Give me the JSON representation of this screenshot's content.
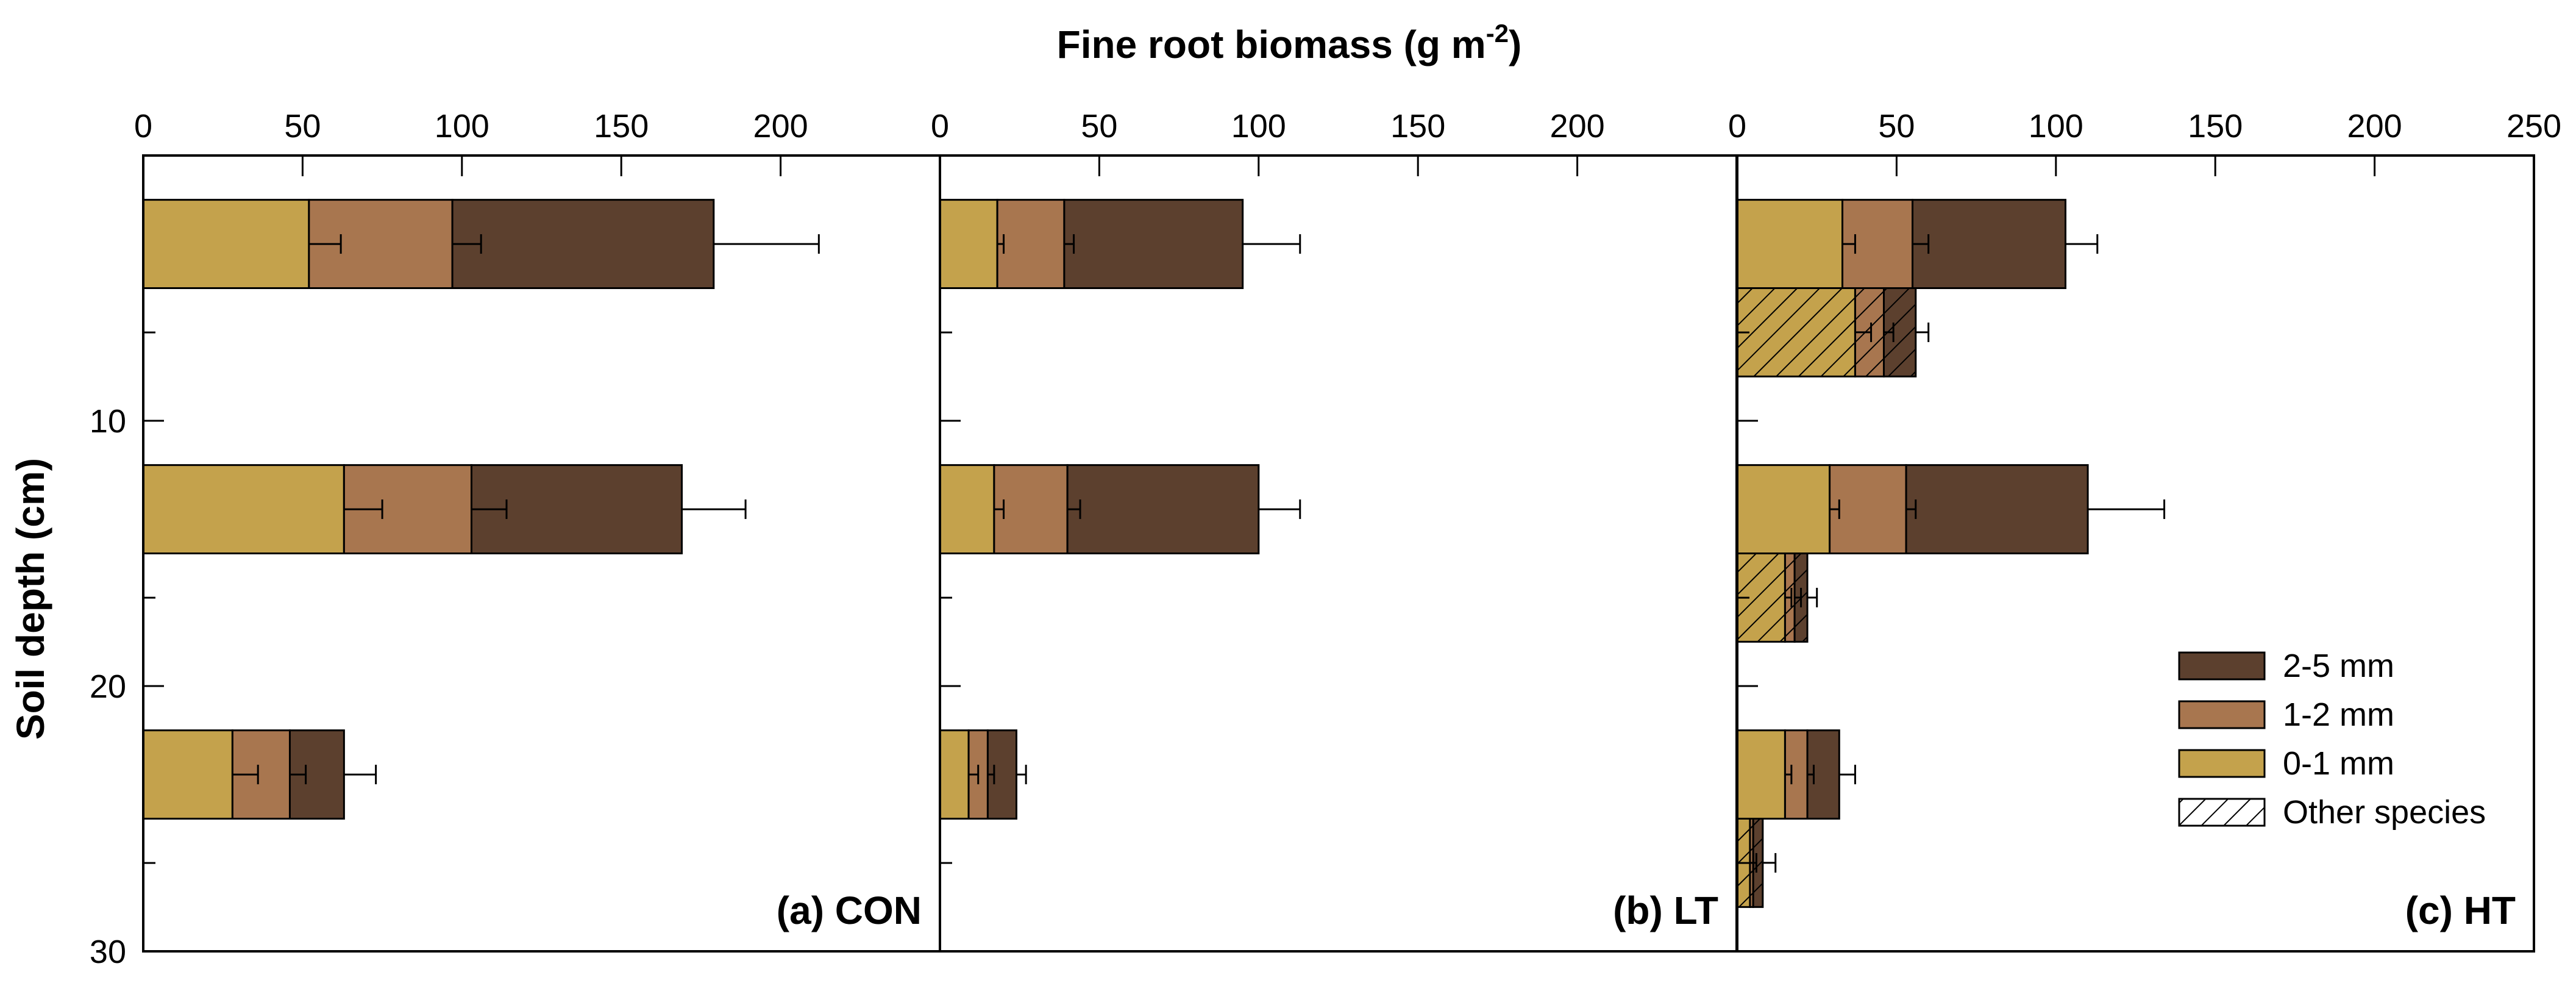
{
  "chart_data": {
    "type": "bar",
    "orientation": "horizontal",
    "stacked": true,
    "title": "",
    "xlabel": "Fine root biomass (g m",
    "xlabel_superscript": "-2",
    "xlabel_suffix": ")",
    "ylabel": "Soil depth (cm)",
    "ylim": [
      0,
      30
    ],
    "y_ticks": [
      {
        "value": 10,
        "label": "10"
      },
      {
        "value": 20,
        "label": "20"
      },
      {
        "value": 30,
        "label": "30"
      }
    ],
    "y_minor_ticks": [
      0,
      6.67,
      16.67,
      26.67
    ],
    "colors": {
      "0-1 mm": "#c4a24c",
      "1-2 mm": "#a8764f",
      "2-5 mm": "#5c402e"
    },
    "legend": {
      "position": "bottom-right of panel (c)",
      "entries": [
        {
          "label": "2-5 mm",
          "color": "#5c402e",
          "hatched": false
        },
        {
          "label": "1-2 mm",
          "color": "#a8764f",
          "hatched": false
        },
        {
          "label": "0-1 mm",
          "color": "#c4a24c",
          "hatched": false
        },
        {
          "label": "Other species",
          "color": "#ffffff",
          "hatched": true
        }
      ]
    },
    "panels": [
      {
        "label": "(a) CON",
        "xlim": [
          0,
          250
        ],
        "x_ticks": [
          {
            "value": 0,
            "label": "0"
          },
          {
            "value": 50,
            "label": "50"
          },
          {
            "value": 100,
            "label": "100"
          },
          {
            "value": 150,
            "label": "150"
          },
          {
            "value": 200,
            "label": "200"
          }
        ],
        "bars": [
          {
            "depth": [
              1.67,
              5.0
            ],
            "hatched": false,
            "segments": [
              {
                "size": "0-1 mm",
                "value": 52,
                "error": 10
              },
              {
                "size": "1-2 mm",
                "value": 45,
                "error": 9
              },
              {
                "size": "2-5 mm",
                "value": 82,
                "error": 33
              }
            ]
          },
          {
            "depth": [
              11.67,
              15.0
            ],
            "hatched": false,
            "segments": [
              {
                "size": "0-1 mm",
                "value": 63,
                "error": 12
              },
              {
                "size": "1-2 mm",
                "value": 40,
                "error": 11
              },
              {
                "size": "2-5 mm",
                "value": 66,
                "error": 20
              }
            ]
          },
          {
            "depth": [
              21.67,
              25.0
            ],
            "hatched": false,
            "segments": [
              {
                "size": "0-1 mm",
                "value": 28,
                "error": 8
              },
              {
                "size": "1-2 mm",
                "value": 18,
                "error": 5
              },
              {
                "size": "2-5 mm",
                "value": 17,
                "error": 10
              }
            ]
          }
        ]
      },
      {
        "label": "(b) LT",
        "xlim": [
          0,
          250
        ],
        "x_ticks": [
          {
            "value": 0,
            "label": "0"
          },
          {
            "value": 50,
            "label": "50"
          },
          {
            "value": 100,
            "label": "100"
          },
          {
            "value": 150,
            "label": "150"
          },
          {
            "value": 200,
            "label": "200"
          }
        ],
        "bars": [
          {
            "depth": [
              1.67,
              5.0
            ],
            "hatched": false,
            "segments": [
              {
                "size": "0-1 mm",
                "value": 18,
                "error": 2
              },
              {
                "size": "1-2 mm",
                "value": 21,
                "error": 3
              },
              {
                "size": "2-5 mm",
                "value": 56,
                "error": 18
              }
            ]
          },
          {
            "depth": [
              11.67,
              15.0
            ],
            "hatched": false,
            "segments": [
              {
                "size": "0-1 mm",
                "value": 17,
                "error": 3
              },
              {
                "size": "1-2 mm",
                "value": 23,
                "error": 4
              },
              {
                "size": "2-5 mm",
                "value": 60,
                "error": 13
              }
            ]
          },
          {
            "depth": [
              21.67,
              25.0
            ],
            "hatched": false,
            "segments": [
              {
                "size": "0-1 mm",
                "value": 9,
                "error": 3
              },
              {
                "size": "1-2 mm",
                "value": 6,
                "error": 2
              },
              {
                "size": "2-5 mm",
                "value": 9,
                "error": 3
              }
            ]
          }
        ]
      },
      {
        "label": "(c) HT",
        "xlim": [
          0,
          250
        ],
        "x_ticks": [
          {
            "value": 0,
            "label": "0"
          },
          {
            "value": 50,
            "label": "50"
          },
          {
            "value": 100,
            "label": "100"
          },
          {
            "value": 150,
            "label": "150"
          },
          {
            "value": 200,
            "label": "200"
          },
          {
            "value": 250,
            "label": "250"
          }
        ],
        "bars": [
          {
            "depth": [
              1.67,
              5.0
            ],
            "hatched": false,
            "segments": [
              {
                "size": "0-1 mm",
                "value": 33,
                "error": 4
              },
              {
                "size": "1-2 mm",
                "value": 22,
                "error": 5
              },
              {
                "size": "2-5 mm",
                "value": 48,
                "error": 10
              }
            ]
          },
          {
            "depth": [
              5.0,
              8.33
            ],
            "hatched": true,
            "segments": [
              {
                "size": "0-1 mm",
                "value": 37,
                "error": 5
              },
              {
                "size": "1-2 mm",
                "value": 9,
                "error": 3
              },
              {
                "size": "2-5 mm",
                "value": 10,
                "error": 4
              }
            ]
          },
          {
            "depth": [
              11.67,
              15.0
            ],
            "hatched": false,
            "segments": [
              {
                "size": "0-1 mm",
                "value": 29,
                "error": 3
              },
              {
                "size": "1-2 mm",
                "value": 24,
                "error": 3
              },
              {
                "size": "2-5 mm",
                "value": 57,
                "error": 24
              }
            ]
          },
          {
            "depth": [
              15.0,
              18.33
            ],
            "hatched": true,
            "segments": [
              {
                "size": "0-1 mm",
                "value": 15,
                "error": 2
              },
              {
                "size": "1-2 mm",
                "value": 3,
                "error": 2
              },
              {
                "size": "2-5 mm",
                "value": 4,
                "error": 3
              }
            ]
          },
          {
            "depth": [
              21.67,
              25.0
            ],
            "hatched": false,
            "segments": [
              {
                "size": "0-1 mm",
                "value": 15,
                "error": 2
              },
              {
                "size": "1-2 mm",
                "value": 7,
                "error": 2
              },
              {
                "size": "2-5 mm",
                "value": 10,
                "error": 5
              }
            ]
          },
          {
            "depth": [
              25.0,
              28.33
            ],
            "hatched": true,
            "segments": [
              {
                "size": "0-1 mm",
                "value": 4,
                "error": 1
              },
              {
                "size": "1-2 mm",
                "value": 1,
                "error": 1
              },
              {
                "size": "2-5 mm",
                "value": 3,
                "error": 4
              }
            ]
          }
        ]
      }
    ]
  }
}
